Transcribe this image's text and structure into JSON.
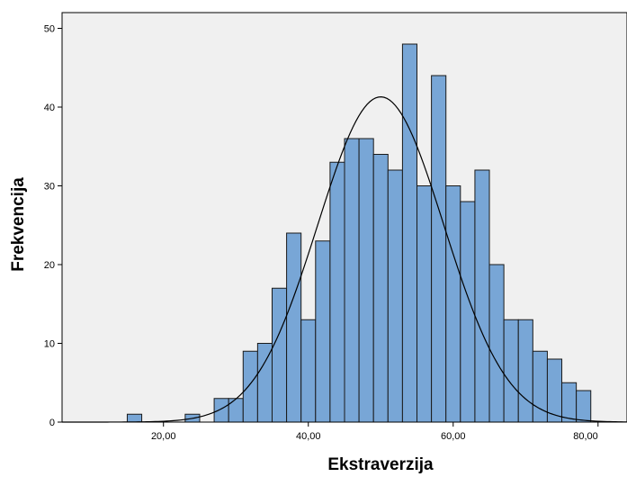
{
  "chart_data": {
    "type": "histogram",
    "xlabel": "Ekstraverzija",
    "ylabel": "Frekvencija",
    "xlim": [
      6,
      84
    ],
    "ylim": [
      0,
      52
    ],
    "x_ticks": [
      20,
      40,
      60,
      80
    ],
    "x_tick_labels": [
      "20,00",
      "40,00",
      "60,00",
      "80,00"
    ],
    "y_ticks": [
      0,
      10,
      20,
      30,
      40,
      50
    ],
    "y_tick_labels": [
      "0",
      "10",
      "20",
      "30",
      "40",
      "50"
    ],
    "grid": false,
    "bin_width": 2,
    "bins": [
      {
        "start": 15,
        "count": 1
      },
      {
        "start": 23,
        "count": 1
      },
      {
        "start": 27,
        "count": 3
      },
      {
        "start": 29,
        "count": 3
      },
      {
        "start": 31,
        "count": 9
      },
      {
        "start": 33,
        "count": 10
      },
      {
        "start": 35,
        "count": 17
      },
      {
        "start": 37,
        "count": 24
      },
      {
        "start": 39,
        "count": 13
      },
      {
        "start": 41,
        "count": 23
      },
      {
        "start": 43,
        "count": 33
      },
      {
        "start": 45,
        "count": 36
      },
      {
        "start": 47,
        "count": 36
      },
      {
        "start": 49,
        "count": 34
      },
      {
        "start": 51,
        "count": 32
      },
      {
        "start": 53,
        "count": 48
      },
      {
        "start": 55,
        "count": 30
      },
      {
        "start": 57,
        "count": 44
      },
      {
        "start": 59,
        "count": 30
      },
      {
        "start": 61,
        "count": 28
      },
      {
        "start": 63,
        "count": 32
      },
      {
        "start": 65,
        "count": 20
      },
      {
        "start": 67,
        "count": 13
      },
      {
        "start": 69,
        "count": 13
      },
      {
        "start": 71,
        "count": 9
      },
      {
        "start": 73,
        "count": 8
      },
      {
        "start": 75,
        "count": 5
      },
      {
        "start": 77,
        "count": 4
      }
    ],
    "normal_curve": {
      "mean": 50,
      "sd": 8.7,
      "peak": 41.3
    },
    "colors": {
      "plot_background": "#f0f0f0",
      "bar_fill": "#78a6d6",
      "bar_stroke": "#1a1a1a",
      "curve": "#000000"
    }
  }
}
